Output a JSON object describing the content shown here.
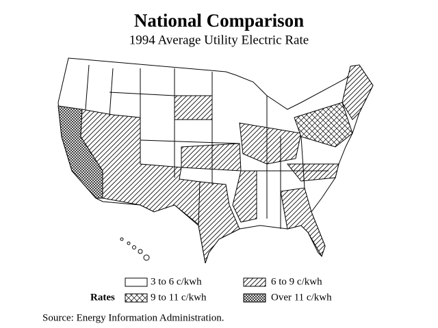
{
  "title": "National Comparison",
  "subtitle": "1994 Average Utility Electric Rate",
  "legend": {
    "label": "Rates",
    "items": [
      "3 to 6 c/kwh",
      "6 to 9 c/kwh",
      "9 to 11 c/kwh",
      "Over 11 c/kwh"
    ]
  },
  "source": "Source: Energy Information Administration."
}
